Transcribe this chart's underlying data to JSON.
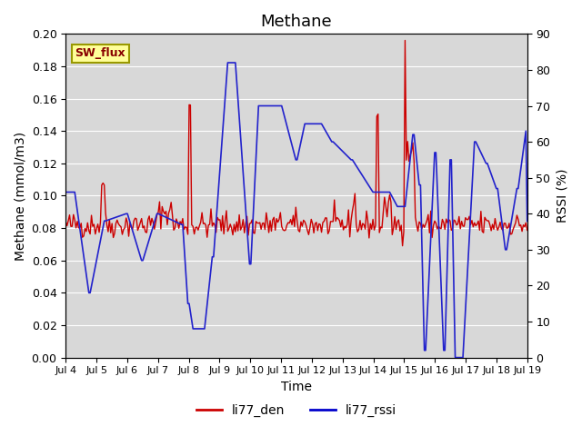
{
  "title": "Methane",
  "ylabel_left": "Methane (mmol/m3)",
  "ylabel_right": "RSSI (%)",
  "xlabel": "Time",
  "ylim_left": [
    0.0,
    0.2
  ],
  "ylim_right": [
    0,
    90
  ],
  "yticks_left": [
    0.0,
    0.02,
    0.04,
    0.06,
    0.08,
    0.1,
    0.12,
    0.14,
    0.16,
    0.18,
    0.2
  ],
  "yticks_right": [
    0,
    10,
    20,
    30,
    40,
    50,
    60,
    70,
    80,
    90
  ],
  "xtick_labels": [
    "Jul 4",
    "Jul 5",
    "Jul 6",
    "Jul 7",
    "Jul 8",
    "Jul 9",
    "Jul 10",
    "Jul 11",
    "Jul 12",
    "Jul 13",
    "Jul 14",
    "Jul 15",
    "Jul 16",
    "Jul 17",
    "Jul 18",
    "Jul 19"
  ],
  "legend_labels": [
    "li77_den",
    "li77_rssi"
  ],
  "legend_colors": [
    "#cc0000",
    "#0000cc"
  ],
  "color_den": "#cc0000",
  "color_rssi": "#2222cc",
  "bg_color": "#d8d8d8",
  "annotation_box_text": "SW_flux",
  "annotation_box_facecolor": "#ffff99",
  "annotation_box_edgecolor": "#999900",
  "annotation_box_textcolor": "#880000",
  "linewidth_den": 1.0,
  "linewidth_rssi": 1.2
}
